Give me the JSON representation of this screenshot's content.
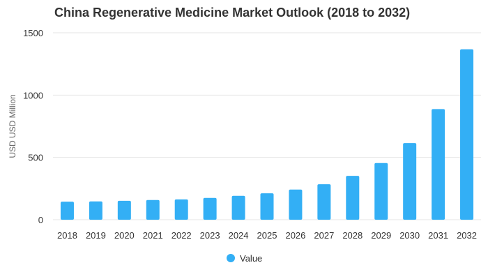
{
  "chart_data": {
    "type": "bar",
    "title": "China Regenerative Medicine Market Outlook (2018 to 2032)",
    "xlabel": "",
    "ylabel": "USD USD Million",
    "categories": [
      "2018",
      "2019",
      "2020",
      "2021",
      "2022",
      "2023",
      "2024",
      "2025",
      "2026",
      "2027",
      "2028",
      "2029",
      "2030",
      "2031",
      "2032"
    ],
    "series": [
      {
        "name": "Value",
        "values": [
          145,
          147,
          152,
          158,
          163,
          175,
          192,
          212,
          242,
          285,
          352,
          455,
          615,
          888,
          1368
        ]
      }
    ],
    "ylim": [
      0,
      1500
    ],
    "yticks": [
      0,
      500,
      1000,
      1500
    ],
    "grid": true,
    "legend": "bottom-center",
    "colors": {
      "bar": "#33aff5",
      "grid": "#e6e6e6",
      "text": "#333333"
    }
  }
}
